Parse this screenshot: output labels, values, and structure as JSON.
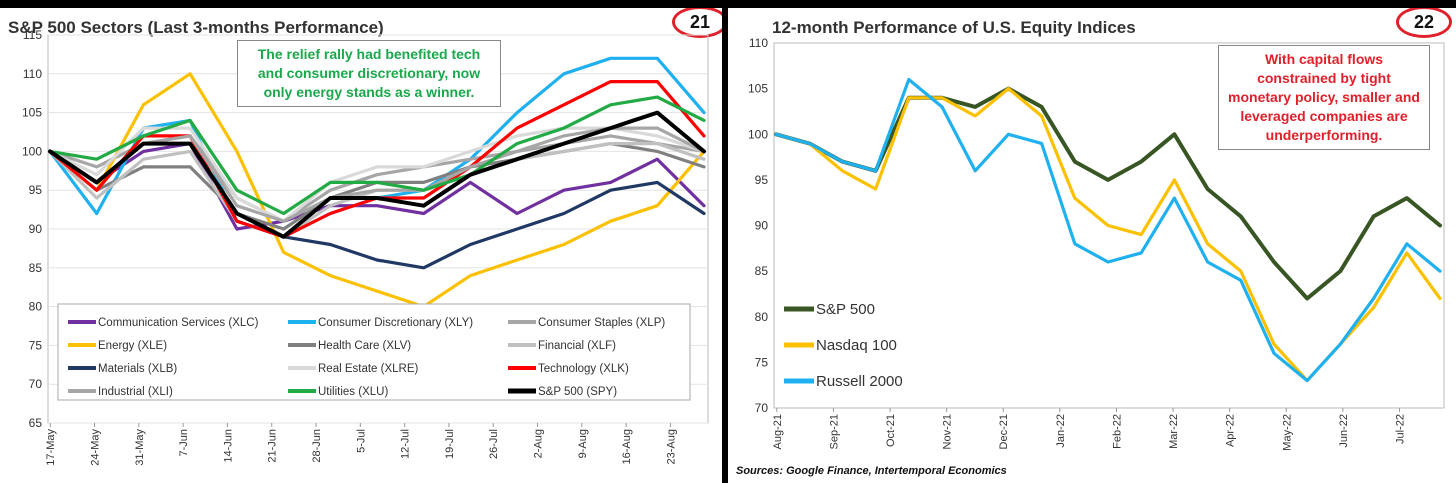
{
  "left": {
    "title": "S&P 500 Sectors (Last 3-months Performance)",
    "badge": "21",
    "note": "The relief rally had benefited tech and consumer discretionary, now only energy stands as a winner.",
    "note_color": "#1aa84b"
  },
  "right": {
    "title": "12-month Performance of U.S. Equity Indices",
    "badge": "22",
    "note": "With capital flows constrained by tight monetary policy, smaller and leveraged companies are underperforming.",
    "note_color": "#e0202a",
    "source": "Sources: Google Finance, Intertemporal Economics"
  },
  "chart_data": [
    {
      "type": "line",
      "title": "S&P 500 Sectors (Last 3-months Performance)",
      "ylim": [
        65,
        115
      ],
      "yticks": [
        65,
        70,
        75,
        80,
        85,
        90,
        95,
        100,
        105,
        110,
        115
      ],
      "x_labels": [
        "17-May",
        "24-May",
        "31-May",
        "7-Jun",
        "14-Jun",
        "21-Jun",
        "28-Jun",
        "5-Jul",
        "12-Jul",
        "19-Jul",
        "26-Jul",
        "2-Aug",
        "9-Aug",
        "16-Aug",
        "23-Aug"
      ],
      "grid": true,
      "legend": "bottom",
      "series": [
        {
          "name": "Communication Services (XLC)",
          "color": "#7030a0",
          "values": [
            100,
            96,
            100,
            101,
            90,
            91,
            93,
            93,
            92,
            96,
            92,
            95,
            96,
            99,
            93
          ]
        },
        {
          "name": "Consumer Discretionary (XLY)",
          "color": "#1fb1ef",
          "values": [
            100,
            92,
            103,
            104,
            91,
            89,
            92,
            94,
            95,
            99,
            105,
            110,
            112,
            112,
            105
          ]
        },
        {
          "name": "Consumer Staples (XLP)",
          "color": "#a6a6a6",
          "values": [
            100,
            98,
            101,
            102,
            94,
            91,
            95,
            97,
            98,
            99,
            100,
            101,
            102,
            101,
            100
          ]
        },
        {
          "name": "Energy (XLE)",
          "color": "#fbc000",
          "values": [
            100,
            95,
            106,
            110,
            100,
            87,
            84,
            82,
            80,
            84,
            86,
            88,
            91,
            93,
            100
          ]
        },
        {
          "name": "Health Care (XLV)",
          "color": "#808080",
          "values": [
            100,
            95,
            98,
            98,
            92,
            90,
            94,
            96,
            96,
            98,
            99,
            100,
            101,
            100,
            98
          ]
        },
        {
          "name": "Financial (XLF)",
          "color": "#c0c0c0",
          "values": [
            100,
            94,
            99,
            100,
            91,
            89,
            93,
            95,
            95,
            97,
            99,
            100,
            101,
            101,
            99
          ]
        },
        {
          "name": "Materials (XLB)",
          "color": "#1f3864",
          "values": [
            100,
            96,
            101,
            101,
            92,
            89,
            88,
            86,
            85,
            88,
            90,
            92,
            95,
            96,
            92
          ]
        },
        {
          "name": "Real Estate (XLRE)",
          "color": "#d9d9d9",
          "values": [
            100,
            97,
            103,
            103,
            94,
            91,
            96,
            98,
            98,
            100,
            102,
            103,
            103,
            102,
            100
          ]
        },
        {
          "name": "Technology (XLK)",
          "color": "#ff0000",
          "values": [
            100,
            95,
            102,
            102,
            91,
            89,
            92,
            94,
            94,
            98,
            103,
            106,
            109,
            109,
            102
          ]
        },
        {
          "name": "Industrial (XLI)",
          "color": "#a6a6a6",
          "values": [
            100,
            96,
            101,
            102,
            93,
            91,
            94,
            95,
            95,
            98,
            100,
            102,
            103,
            103,
            100
          ]
        },
        {
          "name": "Utilities (XLU)",
          "color": "#22aa44",
          "values": [
            100,
            99,
            102,
            104,
            95,
            92,
            96,
            96,
            95,
            97,
            101,
            103,
            106,
            107,
            104
          ]
        },
        {
          "name": "S&P 500 (SPY)",
          "color": "#000000",
          "values": [
            100,
            96,
            101,
            101,
            92,
            89,
            94,
            94,
            93,
            97,
            99,
            101,
            103,
            105,
            100
          ]
        }
      ]
    },
    {
      "type": "line",
      "title": "12-month Performance of U.S. Equity Indices",
      "ylim": [
        70,
        110
      ],
      "yticks": [
        70,
        75,
        80,
        85,
        90,
        95,
        100,
        105,
        110
      ],
      "x_labels": [
        "Aug-21",
        "Sep-21",
        "Oct-21",
        "Nov-21",
        "Dec-21",
        "Jan-22",
        "Feb-22",
        "Mar-22",
        "Apr-22",
        "May-22",
        "Jun-22",
        "Jul-22"
      ],
      "grid": false,
      "legend": "left",
      "series": [
        {
          "name": "S&P 500",
          "color": "#375623",
          "values": [
            100,
            99,
            97,
            96,
            104,
            104,
            103,
            105,
            103,
            97,
            95,
            97,
            100,
            94,
            91,
            86,
            82,
            85,
            91,
            93,
            90
          ]
        },
        {
          "name": "Nasdaq 100",
          "color": "#fbc000",
          "values": [
            100,
            99,
            96,
            94,
            104,
            104,
            102,
            105,
            102,
            93,
            90,
            89,
            95,
            88,
            85,
            77,
            73,
            77,
            81,
            87,
            82
          ]
        },
        {
          "name": "Russell 2000",
          "color": "#1fb1ef",
          "values": [
            100,
            99,
            97,
            96,
            106,
            103,
            96,
            100,
            99,
            88,
            86,
            87,
            93,
            86,
            84,
            76,
            73,
            77,
            82,
            88,
            85
          ]
        }
      ]
    }
  ]
}
